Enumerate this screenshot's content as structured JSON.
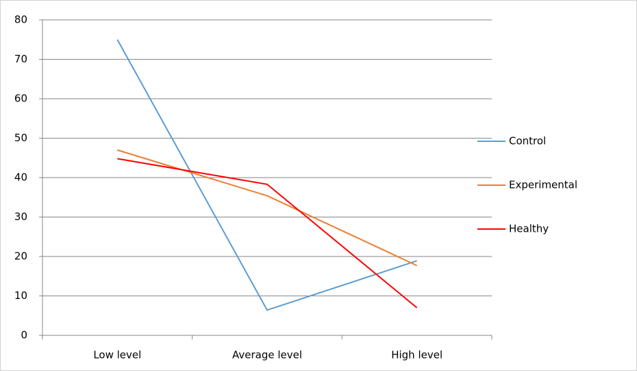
{
  "chart_data": {
    "type": "line",
    "categories": [
      "Low level",
      "Average level",
      "High level"
    ],
    "series": [
      {
        "name": "Control",
        "color": "#5b9bd5",
        "values": [
          75,
          6.4,
          18.9
        ]
      },
      {
        "name": "Experimental",
        "color": "#ed7d31",
        "values": [
          47,
          35.4,
          17.7
        ]
      },
      {
        "name": "Healthy",
        "color": "#ff0000",
        "values": [
          44.8,
          38.3,
          7
        ]
      }
    ],
    "ylim": [
      0,
      80
    ],
    "yticks": [
      0,
      10,
      20,
      30,
      40,
      50,
      60,
      70,
      80
    ],
    "grid": true,
    "legend": "right"
  }
}
